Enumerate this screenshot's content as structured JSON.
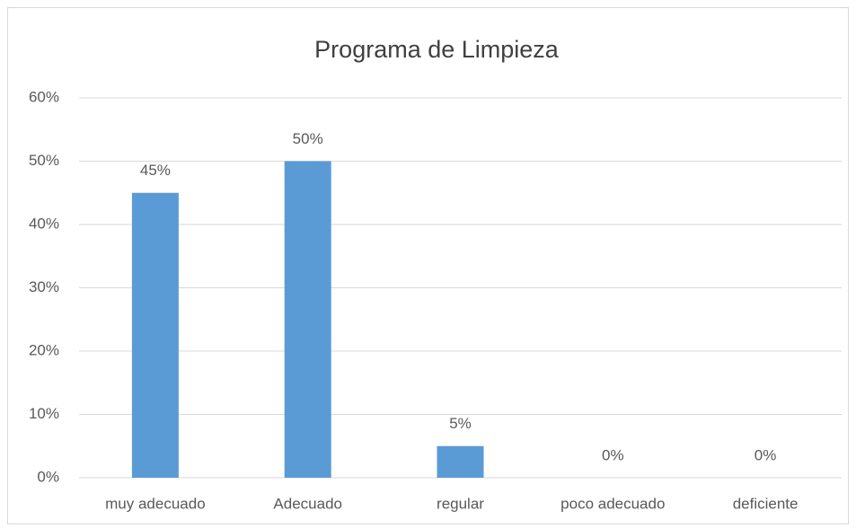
{
  "chart_data": {
    "type": "bar",
    "title": "Programa de Limpieza",
    "categories": [
      "muy adecuado",
      "Adecuado",
      "regular",
      "poco adecuado",
      "deficiente"
    ],
    "values": [
      45,
      50,
      5,
      0,
      0
    ],
    "value_labels": [
      "45%",
      "50%",
      "5%",
      "0%",
      "0%"
    ],
    "color": "#5b9bd5",
    "ylim": [
      0,
      60
    ],
    "yticks": [
      {
        "value": 0,
        "label": "0%"
      },
      {
        "value": 10,
        "label": "10%"
      },
      {
        "value": 20,
        "label": "20%"
      },
      {
        "value": 30,
        "label": "30%"
      },
      {
        "value": 40,
        "label": "40%"
      },
      {
        "value": 50,
        "label": "50%"
      },
      {
        "value": 60,
        "label": "60%"
      }
    ],
    "grid": true
  }
}
